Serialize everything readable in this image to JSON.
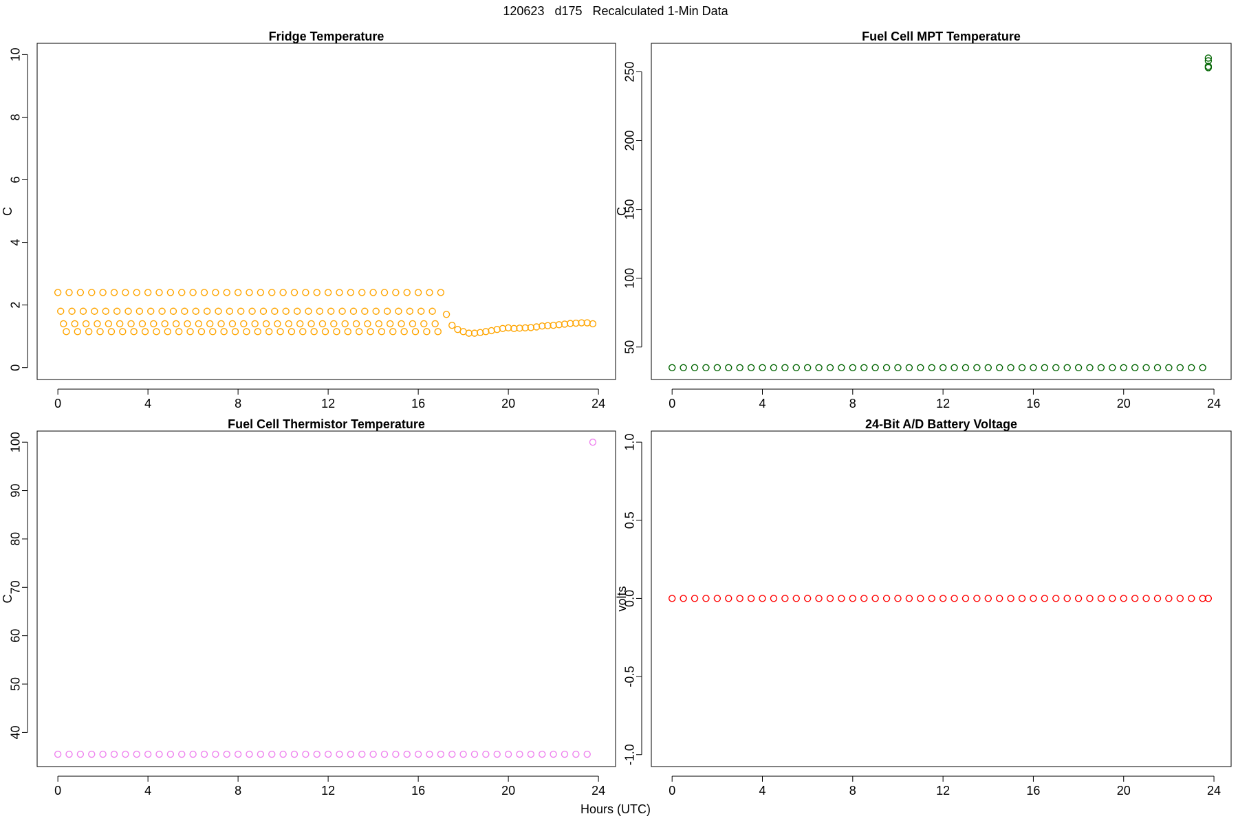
{
  "title": "120623   d175   Recalculated 1-Min Data",
  "xlabel": "Hours (UTC)",
  "chart_data": [
    {
      "type": "scatter",
      "title": "Fridge Temperature",
      "ylabel": "C",
      "color": "#ffa500",
      "xlim": [
        -0.92,
        24.76
      ],
      "xticks": [
        0,
        4,
        8,
        12,
        16,
        20,
        24
      ],
      "ylim": [
        -0.38,
        10.36
      ],
      "yticks": [
        0,
        2,
        4,
        6,
        8,
        10
      ],
      "x": [
        0,
        0.125,
        0.25,
        0.375,
        0.5,
        0.625,
        0.75,
        0.875,
        1,
        1.125,
        1.25,
        1.375,
        1.5,
        1.625,
        1.75,
        1.875,
        2,
        2.125,
        2.25,
        2.375,
        2.5,
        2.625,
        2.75,
        2.875,
        3,
        3.125,
        3.25,
        3.375,
        3.5,
        3.625,
        3.75,
        3.875,
        4,
        4.125,
        4.25,
        4.375,
        4.5,
        4.625,
        4.75,
        4.875,
        5,
        5.125,
        5.25,
        5.375,
        5.5,
        5.625,
        5.75,
        5.875,
        6,
        6.125,
        6.25,
        6.375,
        6.5,
        6.625,
        6.75,
        6.875,
        7,
        7.125,
        7.25,
        7.375,
        7.5,
        7.625,
        7.75,
        7.875,
        8,
        8.125,
        8.25,
        8.375,
        8.5,
        8.625,
        8.75,
        8.875,
        9,
        9.125,
        9.25,
        9.375,
        9.5,
        9.625,
        9.75,
        9.875,
        10,
        10.125,
        10.25,
        10.375,
        10.5,
        10.625,
        10.75,
        10.875,
        11,
        11.125,
        11.25,
        11.375,
        11.5,
        11.625,
        11.75,
        11.875,
        12,
        12.125,
        12.25,
        12.375,
        12.5,
        12.625,
        12.75,
        12.875,
        13,
        13.125,
        13.25,
        13.375,
        13.5,
        13.625,
        13.75,
        13.875,
        14,
        14.125,
        14.25,
        14.375,
        14.5,
        14.625,
        14.75,
        14.875,
        15,
        15.125,
        15.25,
        15.375,
        15.5,
        15.625,
        15.75,
        15.875,
        16,
        16.125,
        16.25,
        16.375,
        16.5,
        16.625,
        16.75,
        16.875,
        17,
        17.25,
        17.5,
        17.75,
        18,
        18.25,
        18.5,
        18.75,
        19,
        19.25,
        19.5,
        19.75,
        20,
        20.25,
        20.5,
        20.75,
        21,
        21.25,
        21.5,
        21.75,
        22,
        22.25,
        22.5,
        22.75,
        23,
        23.25,
        23.5,
        23.75
      ],
      "values": [
        2.4,
        1.8,
        1.4,
        1.15,
        2.4,
        1.8,
        1.4,
        1.15,
        2.4,
        1.8,
        1.4,
        1.15,
        2.4,
        1.8,
        1.4,
        1.15,
        2.4,
        1.8,
        1.4,
        1.15,
        2.4,
        1.8,
        1.4,
        1.15,
        2.4,
        1.8,
        1.4,
        1.15,
        2.4,
        1.8,
        1.4,
        1.15,
        2.4,
        1.8,
        1.4,
        1.15,
        2.4,
        1.8,
        1.4,
        1.15,
        2.4,
        1.8,
        1.4,
        1.15,
        2.4,
        1.8,
        1.4,
        1.15,
        2.4,
        1.8,
        1.4,
        1.15,
        2.4,
        1.8,
        1.4,
        1.15,
        2.4,
        1.8,
        1.4,
        1.15,
        2.4,
        1.8,
        1.4,
        1.15,
        2.4,
        1.8,
        1.4,
        1.15,
        2.4,
        1.8,
        1.4,
        1.15,
        2.4,
        1.8,
        1.4,
        1.15,
        2.4,
        1.8,
        1.4,
        1.15,
        2.4,
        1.8,
        1.4,
        1.15,
        2.4,
        1.8,
        1.4,
        1.15,
        2.4,
        1.8,
        1.4,
        1.15,
        2.4,
        1.8,
        1.4,
        1.15,
        2.4,
        1.8,
        1.4,
        1.15,
        2.4,
        1.8,
        1.4,
        1.15,
        2.4,
        1.8,
        1.4,
        1.15,
        2.4,
        1.8,
        1.4,
        1.15,
        2.4,
        1.8,
        1.4,
        1.15,
        2.4,
        1.8,
        1.4,
        1.15,
        2.4,
        1.8,
        1.4,
        1.15,
        2.4,
        1.8,
        1.4,
        1.15,
        2.4,
        1.8,
        1.4,
        1.15,
        2.4,
        1.8,
        1.4,
        1.15,
        2.4,
        1.7,
        1.35,
        1.22,
        1.15,
        1.1,
        1.1,
        1.12,
        1.15,
        1.18,
        1.22,
        1.25,
        1.27,
        1.25,
        1.26,
        1.27,
        1.28,
        1.3,
        1.33,
        1.34,
        1.35,
        1.37,
        1.39,
        1.41,
        1.42,
        1.43,
        1.43,
        1.4
      ]
    },
    {
      "type": "scatter",
      "title": "Fuel Cell MPT Temperature",
      "ylabel": "C",
      "color": "#006400",
      "xlim": [
        -0.92,
        24.76
      ],
      "xticks": [
        0,
        4,
        8,
        12,
        16,
        20,
        24
      ],
      "ylim": [
        26.4,
        270.7
      ],
      "yticks": [
        50,
        100,
        150,
        200,
        250
      ],
      "x": [
        0,
        0.5,
        1,
        1.5,
        2,
        2.5,
        3,
        3.5,
        4,
        4.5,
        5,
        5.5,
        6,
        6.5,
        7,
        7.5,
        8,
        8.5,
        9,
        9.5,
        10,
        10.5,
        11,
        11.5,
        12,
        12.5,
        13,
        13.5,
        14,
        14.5,
        15,
        15.5,
        16,
        16.5,
        17,
        17.5,
        18,
        18.5,
        19,
        19.5,
        20,
        20.5,
        21,
        21.5,
        22,
        22.5,
        23,
        23.5,
        23.75,
        23.75,
        23.75,
        23.75
      ],
      "values": [
        35,
        35,
        35,
        35,
        35,
        35,
        35,
        35,
        35,
        35,
        35,
        35,
        35,
        35,
        35,
        35,
        35,
        35,
        35,
        35,
        35,
        35,
        35,
        35,
        35,
        35,
        35,
        35,
        35,
        35,
        35,
        35,
        35,
        35,
        35,
        35,
        35,
        35,
        35,
        35,
        35,
        35,
        35,
        35,
        35,
        35,
        35,
        35,
        260,
        258,
        253,
        254
      ]
    },
    {
      "type": "scatter",
      "title": "Fuel Cell Thermistor Temperature",
      "ylabel": "C",
      "color": "#ee82ee",
      "xlim": [
        -0.92,
        24.76
      ],
      "xticks": [
        0,
        4,
        8,
        12,
        16,
        20,
        24
      ],
      "ylim": [
        32.95,
        102.3
      ],
      "yticks": [
        40,
        50,
        60,
        70,
        80,
        90,
        100
      ],
      "x": [
        0,
        0.5,
        1,
        1.5,
        2,
        2.5,
        3,
        3.5,
        4,
        4.5,
        5,
        5.5,
        6,
        6.5,
        7,
        7.5,
        8,
        8.5,
        9,
        9.5,
        10,
        10.5,
        11,
        11.5,
        12,
        12.5,
        13,
        13.5,
        14,
        14.5,
        15,
        15.5,
        16,
        16.5,
        17,
        17.5,
        18,
        18.5,
        19,
        19.5,
        20,
        20.5,
        21,
        21.5,
        22,
        22.5,
        23,
        23.5,
        23.75
      ],
      "values": [
        35.5,
        35.5,
        35.5,
        35.5,
        35.5,
        35.5,
        35.5,
        35.5,
        35.5,
        35.5,
        35.5,
        35.5,
        35.5,
        35.5,
        35.5,
        35.5,
        35.5,
        35.5,
        35.5,
        35.5,
        35.5,
        35.5,
        35.5,
        35.5,
        35.5,
        35.5,
        35.5,
        35.5,
        35.5,
        35.5,
        35.5,
        35.5,
        35.5,
        35.5,
        35.5,
        35.5,
        35.5,
        35.5,
        35.5,
        35.5,
        35.5,
        35.5,
        35.5,
        35.5,
        35.5,
        35.5,
        35.5,
        35.5,
        100
      ]
    },
    {
      "type": "scatter",
      "title": "24-Bit A/D Battery Voltage",
      "ylabel": "volts",
      "color": "#ff0000",
      "xlim": [
        -0.92,
        24.76
      ],
      "xticks": [
        0,
        4,
        8,
        12,
        16,
        20,
        24
      ],
      "ylim": [
        -1.076,
        1.071
      ],
      "yticks": [
        {
          "value": -1,
          "label": "-1.0"
        },
        {
          "value": -0.5,
          "label": "-0.5"
        },
        {
          "value": 0,
          "label": "0.0"
        },
        {
          "value": 0.5,
          "label": "0.5"
        },
        {
          "value": 1,
          "label": "1.0"
        }
      ],
      "x": [
        0,
        0.5,
        1,
        1.5,
        2,
        2.5,
        3,
        3.5,
        4,
        4.5,
        5,
        5.5,
        6,
        6.5,
        7,
        7.5,
        8,
        8.5,
        9,
        9.5,
        10,
        10.5,
        11,
        11.5,
        12,
        12.5,
        13,
        13.5,
        14,
        14.5,
        15,
        15.5,
        16,
        16.5,
        17,
        17.5,
        18,
        18.5,
        19,
        19.5,
        20,
        20.5,
        21,
        21.5,
        22,
        22.5,
        23,
        23.5,
        23.75
      ],
      "values": [
        0,
        0,
        0,
        0,
        0,
        0,
        0,
        0,
        0,
        0,
        0,
        0,
        0,
        0,
        0,
        0,
        0,
        0,
        0,
        0,
        0,
        0,
        0,
        0,
        0,
        0,
        0,
        0,
        0,
        0,
        0,
        0,
        0,
        0,
        0,
        0,
        0,
        0,
        0,
        0,
        0,
        0,
        0,
        0,
        0,
        0,
        0,
        0,
        0
      ]
    }
  ]
}
